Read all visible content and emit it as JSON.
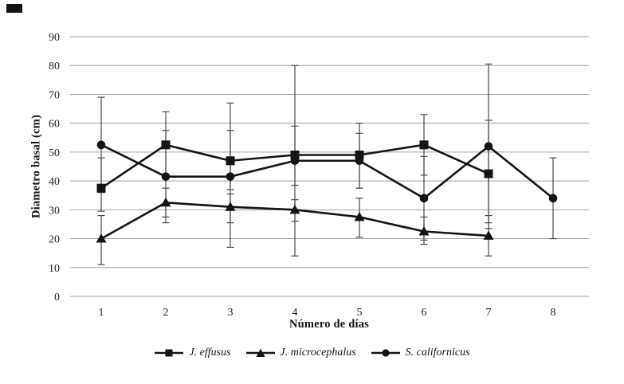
{
  "chart_data": {
    "type": "line",
    "title": "",
    "xlabel": "Número de días",
    "ylabel": "Diametro basal (cm)",
    "x_ticks": [
      "1",
      "2",
      "3",
      "4",
      "5",
      "6",
      "7",
      "8"
    ],
    "y_ticks": [
      "0",
      "10",
      "20",
      "30",
      "40",
      "50",
      "60",
      "70",
      "80",
      "90"
    ],
    "ylim": [
      0,
      90
    ],
    "grid": true,
    "legend_position": "bottom-center",
    "colors": {
      "series": "#141414",
      "grid": "#a3a3a3",
      "error_bar": "#4a4a4a",
      "text": "#1f1f1f"
    },
    "series": [
      {
        "name": "J. effusus",
        "marker": "square",
        "values": [
          37.5,
          52.5,
          47,
          49,
          49,
          52.5,
          42.5,
          null
        ],
        "err_high": [
          48,
          64,
          57.5,
          59,
          60,
          63,
          61,
          null
        ],
        "err_low": [
          29.5,
          41,
          37,
          38.5,
          37.5,
          42,
          25.5,
          null
        ]
      },
      {
        "name": "J. microcephalus",
        "marker": "triangle",
        "values": [
          20,
          32.5,
          31,
          30,
          27.5,
          22.5,
          21,
          null
        ],
        "err_high": [
          28,
          37.5,
          35.5,
          33.5,
          34,
          27.5,
          28,
          null
        ],
        "err_low": [
          11,
          27.5,
          25.5,
          26,
          20.5,
          18,
          14,
          null
        ]
      },
      {
        "name": "S. californicus",
        "marker": "circle",
        "values": [
          52.5,
          41.5,
          41.5,
          47,
          47,
          34,
          52,
          34
        ],
        "err_high": [
          69,
          57.5,
          67,
          80,
          56.5,
          48.5,
          80.5,
          48
        ],
        "err_low": [
          36,
          25.5,
          17,
          14,
          37.5,
          19.5,
          23.5,
          20
        ]
      }
    ]
  }
}
